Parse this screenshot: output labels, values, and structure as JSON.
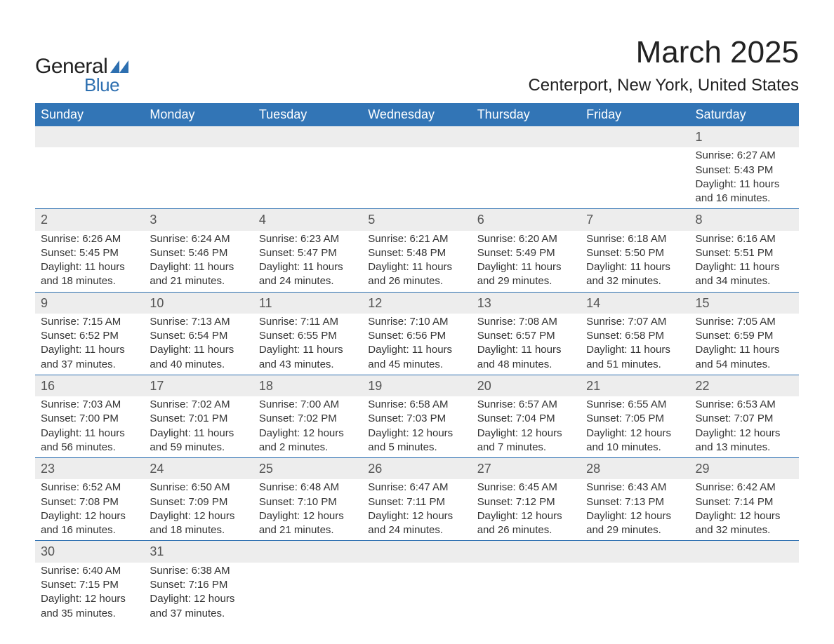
{
  "brand": {
    "word1": "General",
    "word2": "Blue",
    "accent_color": "#2d6fb0"
  },
  "title": "March 2025",
  "location": "Centerport, New York, United States",
  "colors": {
    "header_bg": "#3275b6",
    "header_text": "#ffffff",
    "daynum_bg": "#ededed",
    "text": "#333333",
    "rule": "#2d6fb0",
    "page_bg": "#ffffff"
  },
  "weekdays": [
    "Sunday",
    "Monday",
    "Tuesday",
    "Wednesday",
    "Thursday",
    "Friday",
    "Saturday"
  ],
  "weeks": [
    [
      null,
      null,
      null,
      null,
      null,
      null,
      {
        "n": "1",
        "sr": "Sunrise: 6:27 AM",
        "ss": "Sunset: 5:43 PM",
        "d1": "Daylight: 11 hours",
        "d2": "and 16 minutes."
      }
    ],
    [
      {
        "n": "2",
        "sr": "Sunrise: 6:26 AM",
        "ss": "Sunset: 5:45 PM",
        "d1": "Daylight: 11 hours",
        "d2": "and 18 minutes."
      },
      {
        "n": "3",
        "sr": "Sunrise: 6:24 AM",
        "ss": "Sunset: 5:46 PM",
        "d1": "Daylight: 11 hours",
        "d2": "and 21 minutes."
      },
      {
        "n": "4",
        "sr": "Sunrise: 6:23 AM",
        "ss": "Sunset: 5:47 PM",
        "d1": "Daylight: 11 hours",
        "d2": "and 24 minutes."
      },
      {
        "n": "5",
        "sr": "Sunrise: 6:21 AM",
        "ss": "Sunset: 5:48 PM",
        "d1": "Daylight: 11 hours",
        "d2": "and 26 minutes."
      },
      {
        "n": "6",
        "sr": "Sunrise: 6:20 AM",
        "ss": "Sunset: 5:49 PM",
        "d1": "Daylight: 11 hours",
        "d2": "and 29 minutes."
      },
      {
        "n": "7",
        "sr": "Sunrise: 6:18 AM",
        "ss": "Sunset: 5:50 PM",
        "d1": "Daylight: 11 hours",
        "d2": "and 32 minutes."
      },
      {
        "n": "8",
        "sr": "Sunrise: 6:16 AM",
        "ss": "Sunset: 5:51 PM",
        "d1": "Daylight: 11 hours",
        "d2": "and 34 minutes."
      }
    ],
    [
      {
        "n": "9",
        "sr": "Sunrise: 7:15 AM",
        "ss": "Sunset: 6:52 PM",
        "d1": "Daylight: 11 hours",
        "d2": "and 37 minutes."
      },
      {
        "n": "10",
        "sr": "Sunrise: 7:13 AM",
        "ss": "Sunset: 6:54 PM",
        "d1": "Daylight: 11 hours",
        "d2": "and 40 minutes."
      },
      {
        "n": "11",
        "sr": "Sunrise: 7:11 AM",
        "ss": "Sunset: 6:55 PM",
        "d1": "Daylight: 11 hours",
        "d2": "and 43 minutes."
      },
      {
        "n": "12",
        "sr": "Sunrise: 7:10 AM",
        "ss": "Sunset: 6:56 PM",
        "d1": "Daylight: 11 hours",
        "d2": "and 45 minutes."
      },
      {
        "n": "13",
        "sr": "Sunrise: 7:08 AM",
        "ss": "Sunset: 6:57 PM",
        "d1": "Daylight: 11 hours",
        "d2": "and 48 minutes."
      },
      {
        "n": "14",
        "sr": "Sunrise: 7:07 AM",
        "ss": "Sunset: 6:58 PM",
        "d1": "Daylight: 11 hours",
        "d2": "and 51 minutes."
      },
      {
        "n": "15",
        "sr": "Sunrise: 7:05 AM",
        "ss": "Sunset: 6:59 PM",
        "d1": "Daylight: 11 hours",
        "d2": "and 54 minutes."
      }
    ],
    [
      {
        "n": "16",
        "sr": "Sunrise: 7:03 AM",
        "ss": "Sunset: 7:00 PM",
        "d1": "Daylight: 11 hours",
        "d2": "and 56 minutes."
      },
      {
        "n": "17",
        "sr": "Sunrise: 7:02 AM",
        "ss": "Sunset: 7:01 PM",
        "d1": "Daylight: 11 hours",
        "d2": "and 59 minutes."
      },
      {
        "n": "18",
        "sr": "Sunrise: 7:00 AM",
        "ss": "Sunset: 7:02 PM",
        "d1": "Daylight: 12 hours",
        "d2": "and 2 minutes."
      },
      {
        "n": "19",
        "sr": "Sunrise: 6:58 AM",
        "ss": "Sunset: 7:03 PM",
        "d1": "Daylight: 12 hours",
        "d2": "and 5 minutes."
      },
      {
        "n": "20",
        "sr": "Sunrise: 6:57 AM",
        "ss": "Sunset: 7:04 PM",
        "d1": "Daylight: 12 hours",
        "d2": "and 7 minutes."
      },
      {
        "n": "21",
        "sr": "Sunrise: 6:55 AM",
        "ss": "Sunset: 7:05 PM",
        "d1": "Daylight: 12 hours",
        "d2": "and 10 minutes."
      },
      {
        "n": "22",
        "sr": "Sunrise: 6:53 AM",
        "ss": "Sunset: 7:07 PM",
        "d1": "Daylight: 12 hours",
        "d2": "and 13 minutes."
      }
    ],
    [
      {
        "n": "23",
        "sr": "Sunrise: 6:52 AM",
        "ss": "Sunset: 7:08 PM",
        "d1": "Daylight: 12 hours",
        "d2": "and 16 minutes."
      },
      {
        "n": "24",
        "sr": "Sunrise: 6:50 AM",
        "ss": "Sunset: 7:09 PM",
        "d1": "Daylight: 12 hours",
        "d2": "and 18 minutes."
      },
      {
        "n": "25",
        "sr": "Sunrise: 6:48 AM",
        "ss": "Sunset: 7:10 PM",
        "d1": "Daylight: 12 hours",
        "d2": "and 21 minutes."
      },
      {
        "n": "26",
        "sr": "Sunrise: 6:47 AM",
        "ss": "Sunset: 7:11 PM",
        "d1": "Daylight: 12 hours",
        "d2": "and 24 minutes."
      },
      {
        "n": "27",
        "sr": "Sunrise: 6:45 AM",
        "ss": "Sunset: 7:12 PM",
        "d1": "Daylight: 12 hours",
        "d2": "and 26 minutes."
      },
      {
        "n": "28",
        "sr": "Sunrise: 6:43 AM",
        "ss": "Sunset: 7:13 PM",
        "d1": "Daylight: 12 hours",
        "d2": "and 29 minutes."
      },
      {
        "n": "29",
        "sr": "Sunrise: 6:42 AM",
        "ss": "Sunset: 7:14 PM",
        "d1": "Daylight: 12 hours",
        "d2": "and 32 minutes."
      }
    ],
    [
      {
        "n": "30",
        "sr": "Sunrise: 6:40 AM",
        "ss": "Sunset: 7:15 PM",
        "d1": "Daylight: 12 hours",
        "d2": "and 35 minutes."
      },
      {
        "n": "31",
        "sr": "Sunrise: 6:38 AM",
        "ss": "Sunset: 7:16 PM",
        "d1": "Daylight: 12 hours",
        "d2": "and 37 minutes."
      },
      null,
      null,
      null,
      null,
      null
    ]
  ]
}
